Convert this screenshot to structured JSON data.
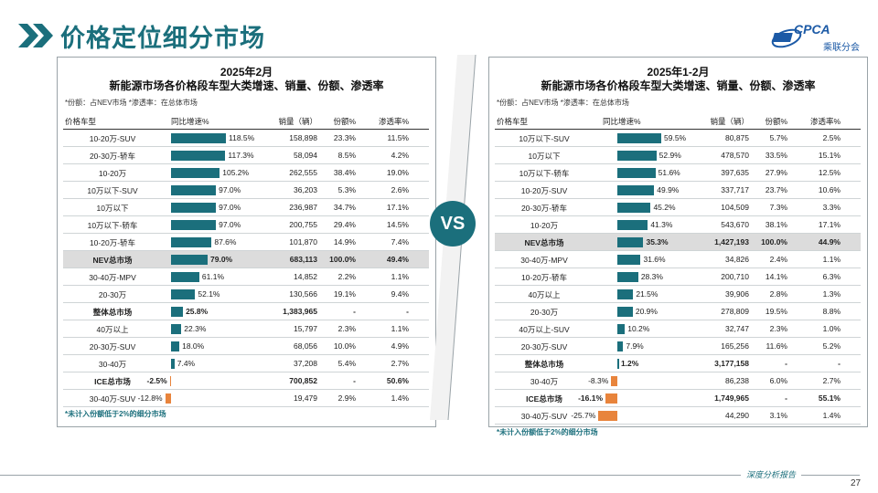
{
  "header": {
    "title": "价格定位细分市场",
    "logo_en": "CPCA",
    "logo_cn": "乘联分会"
  },
  "vs_label": "VS",
  "footer": {
    "tag": "深度分析报告",
    "page": "27"
  },
  "colors": {
    "accent": "#1b6f7c",
    "negative": "#e8843c"
  },
  "left": {
    "title_line1": "2025年2月",
    "title_line2": "新能源市场各价格段车型大类增速、销量、份额、渗透率",
    "note": "*份额：占NEV市场   *渗透率：在总体市场",
    "footnote": "*未计入份额低于2%的细分市场",
    "headers": {
      "name": "价格车型",
      "growth": "同比增速%",
      "volume": "销量（辆）",
      "share": "份额%",
      "pen": "渗透率%"
    },
    "rows": [
      {
        "name": "10-20万-SUV",
        "growth": 118.5,
        "growth_label": "118.5%",
        "volume": "158,898",
        "share": "23.3%",
        "pen": "11.5%"
      },
      {
        "name": "20-30万-轿车",
        "growth": 117.3,
        "growth_label": "117.3%",
        "volume": "58,094",
        "share": "8.5%",
        "pen": "4.2%"
      },
      {
        "name": "10-20万",
        "growth": 105.2,
        "growth_label": "105.2%",
        "volume": "262,555",
        "share": "38.4%",
        "pen": "19.0%"
      },
      {
        "name": "10万以下-SUV",
        "growth": 97.0,
        "growth_label": "97.0%",
        "volume": "36,203",
        "share": "5.3%",
        "pen": "2.6%"
      },
      {
        "name": "10万以下",
        "growth": 97.0,
        "growth_label": "97.0%",
        "volume": "236,987",
        "share": "34.7%",
        "pen": "17.1%"
      },
      {
        "name": "10万以下-轿车",
        "growth": 97.0,
        "growth_label": "97.0%",
        "volume": "200,755",
        "share": "29.4%",
        "pen": "14.5%"
      },
      {
        "name": "10-20万-轿车",
        "growth": 87.6,
        "growth_label": "87.6%",
        "volume": "101,870",
        "share": "14.9%",
        "pen": "7.4%"
      },
      {
        "name": "NEV总市场",
        "growth": 79.0,
        "growth_label": "79.0%",
        "volume": "683,113",
        "share": "100.0%",
        "pen": "49.4%",
        "style": "hl"
      },
      {
        "name": "30-40万-MPV",
        "growth": 61.1,
        "growth_label": "61.1%",
        "volume": "14,852",
        "share": "2.2%",
        "pen": "1.1%"
      },
      {
        "name": "20-30万",
        "growth": 52.1,
        "growth_label": "52.1%",
        "volume": "130,566",
        "share": "19.1%",
        "pen": "9.4%"
      },
      {
        "name": "整体总市场",
        "growth": 25.8,
        "growth_label": "25.8%",
        "volume": "1,383,965",
        "share": "-",
        "pen": "-",
        "style": "bold"
      },
      {
        "name": "40万以上",
        "growth": 22.3,
        "growth_label": "22.3%",
        "volume": "15,797",
        "share": "2.3%",
        "pen": "1.1%"
      },
      {
        "name": "20-30万-SUV",
        "growth": 18.0,
        "growth_label": "18.0%",
        "volume": "68,056",
        "share": "10.0%",
        "pen": "4.9%"
      },
      {
        "name": "30-40万",
        "growth": 7.4,
        "growth_label": "7.4%",
        "volume": "37,208",
        "share": "5.4%",
        "pen": "2.7%"
      },
      {
        "name": "ICE总市场",
        "growth": -2.5,
        "growth_label": "-2.5%",
        "volume": "700,852",
        "share": "-",
        "pen": "50.6%",
        "style": "bold"
      },
      {
        "name": "30-40万-SUV",
        "growth": -12.8,
        "growth_label": "-12.8%",
        "volume": "19,479",
        "share": "2.9%",
        "pen": "1.4%"
      }
    ]
  },
  "right": {
    "title_line1": "2025年1-2月",
    "title_line2": "新能源市场各价格段车型大类增速、销量、份额、渗透率",
    "note": "*份额：占NEV市场   *渗透率：在总体市场",
    "footnote": "*未计入份额低于2%的细分市场",
    "headers": {
      "name": "价格车型",
      "growth": "同比增速%",
      "volume": "销量（辆）",
      "share": "份额%",
      "pen": "渗透率%"
    },
    "rows": [
      {
        "name": "10万以下-SUV",
        "growth": 59.5,
        "growth_label": "59.5%",
        "volume": "80,875",
        "share": "5.7%",
        "pen": "2.5%"
      },
      {
        "name": "10万以下",
        "growth": 52.9,
        "growth_label": "52.9%",
        "volume": "478,570",
        "share": "33.5%",
        "pen": "15.1%"
      },
      {
        "name": "10万以下-轿车",
        "growth": 51.6,
        "growth_label": "51.6%",
        "volume": "397,635",
        "share": "27.9%",
        "pen": "12.5%"
      },
      {
        "name": "10-20万-SUV",
        "growth": 49.9,
        "growth_label": "49.9%",
        "volume": "337,717",
        "share": "23.7%",
        "pen": "10.6%"
      },
      {
        "name": "20-30万-轿车",
        "growth": 45.2,
        "growth_label": "45.2%",
        "volume": "104,509",
        "share": "7.3%",
        "pen": "3.3%"
      },
      {
        "name": "10-20万",
        "growth": 41.3,
        "growth_label": "41.3%",
        "volume": "543,670",
        "share": "38.1%",
        "pen": "17.1%"
      },
      {
        "name": "NEV总市场",
        "growth": 35.3,
        "growth_label": "35.3%",
        "volume": "1,427,193",
        "share": "100.0%",
        "pen": "44.9%",
        "style": "hl"
      },
      {
        "name": "30-40万-MPV",
        "growth": 31.6,
        "growth_label": "31.6%",
        "volume": "34,826",
        "share": "2.4%",
        "pen": "1.1%"
      },
      {
        "name": "10-20万-轿车",
        "growth": 28.3,
        "growth_label": "28.3%",
        "volume": "200,710",
        "share": "14.1%",
        "pen": "6.3%"
      },
      {
        "name": "40万以上",
        "growth": 21.5,
        "growth_label": "21.5%",
        "volume": "39,906",
        "share": "2.8%",
        "pen": "1.3%"
      },
      {
        "name": "20-30万",
        "growth": 20.9,
        "growth_label": "20.9%",
        "volume": "278,809",
        "share": "19.5%",
        "pen": "8.8%"
      },
      {
        "name": "40万以上-SUV",
        "growth": 10.2,
        "growth_label": "10.2%",
        "volume": "32,747",
        "share": "2.3%",
        "pen": "1.0%"
      },
      {
        "name": "20-30万-SUV",
        "growth": 7.9,
        "growth_label": "7.9%",
        "volume": "165,256",
        "share": "11.6%",
        "pen": "5.2%"
      },
      {
        "name": "整体总市场",
        "growth": 1.2,
        "growth_label": "1.2%",
        "volume": "3,177,158",
        "share": "-",
        "pen": "-",
        "style": "bold"
      },
      {
        "name": "30-40万",
        "growth": -8.3,
        "growth_label": "-8.3%",
        "volume": "86,238",
        "share": "6.0%",
        "pen": "2.7%"
      },
      {
        "name": "ICE总市场",
        "growth": -16.1,
        "growth_label": "-16.1%",
        "volume": "1,749,965",
        "share": "-",
        "pen": "55.1%",
        "style": "bold"
      },
      {
        "name": "30-40万-SUV",
        "growth": -25.7,
        "growth_label": "-25.7%",
        "volume": "44,290",
        "share": "3.1%",
        "pen": "1.4%"
      }
    ]
  }
}
